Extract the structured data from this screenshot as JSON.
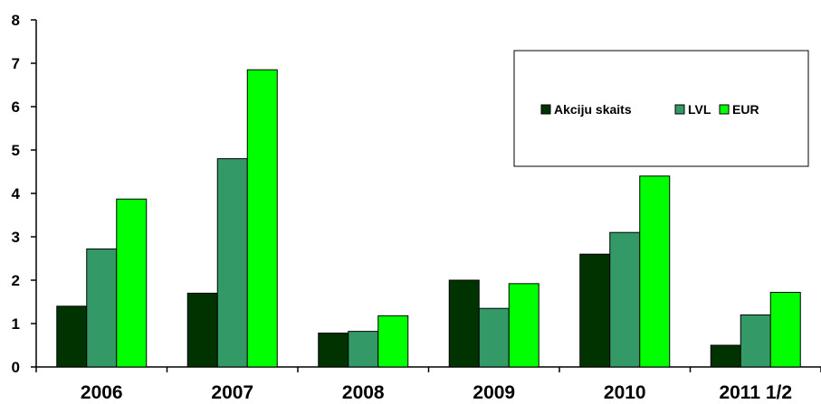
{
  "chart_data": {
    "type": "bar",
    "categories": [
      "2006",
      "2007",
      "2008",
      "2009",
      "2010",
      "2011 1/2"
    ],
    "series": [
      {
        "name": "Akciju skaits",
        "color": "#003300",
        "values": [
          1.4,
          1.7,
          0.78,
          2.0,
          2.6,
          0.5
        ]
      },
      {
        "name": "LVL",
        "color": "#339966",
        "values": [
          2.72,
          4.8,
          0.82,
          1.35,
          3.1,
          1.2
        ]
      },
      {
        "name": "EUR",
        "color": "#00ff00",
        "values": [
          3.87,
          6.85,
          1.18,
          1.92,
          4.4,
          1.72
        ]
      }
    ],
    "ylim": [
      0,
      8
    ],
    "yticks": [
      "0",
      "1",
      "2",
      "3",
      "4",
      "5",
      "6",
      "7",
      "8"
    ],
    "grid": false,
    "legend_position": "top-right"
  }
}
